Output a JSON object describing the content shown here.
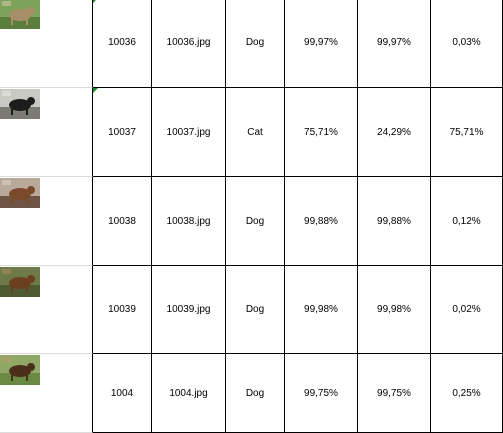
{
  "rows": [
    {
      "id": "10036",
      "file": "10036.jpg",
      "label": "Dog",
      "conf": "99,97%",
      "p1": "99,97%",
      "p2": "0,03%",
      "flagged": true,
      "thumb": {
        "bg": "#7da35a",
        "ground": "#5a7f3c",
        "subject": "#a88f6a",
        "accent": "#cfc2a4"
      }
    },
    {
      "id": "10037",
      "file": "10037.jpg",
      "label": "Cat",
      "conf": "75,71%",
      "p1": "24,29%",
      "p2": "75,71%",
      "flagged": true,
      "thumb": {
        "bg": "#c9c9c4",
        "ground": "#7b7b74",
        "subject": "#1c1c1c",
        "accent": "#e7e7e2"
      }
    },
    {
      "id": "10038",
      "file": "10038.jpg",
      "label": "Dog",
      "conf": "99,88%",
      "p1": "99,88%",
      "p2": "0,12%",
      "flagged": false,
      "thumb": {
        "bg": "#b9a99a",
        "ground": "#6d5444",
        "subject": "#7a4a2a",
        "accent": "#d8cfc6"
      }
    },
    {
      "id": "10039",
      "file": "10039.jpg",
      "label": "Dog",
      "conf": "99,98%",
      "p1": "99,98%",
      "p2": "0,02%",
      "flagged": false,
      "thumb": {
        "bg": "#6f7a4b",
        "ground": "#4e5a32",
        "subject": "#6b4020",
        "accent": "#a98a5c"
      }
    },
    {
      "id": "1004",
      "file": "1004.jpg",
      "label": "Dog",
      "conf": "99,75%",
      "p1": "99,75%",
      "p2": "0,25%",
      "flagged": false,
      "thumb": {
        "bg": "#8fa866",
        "ground": "#6a8a44",
        "subject": "#4a2e1a",
        "accent": "#b99a6a"
      }
    }
  ]
}
